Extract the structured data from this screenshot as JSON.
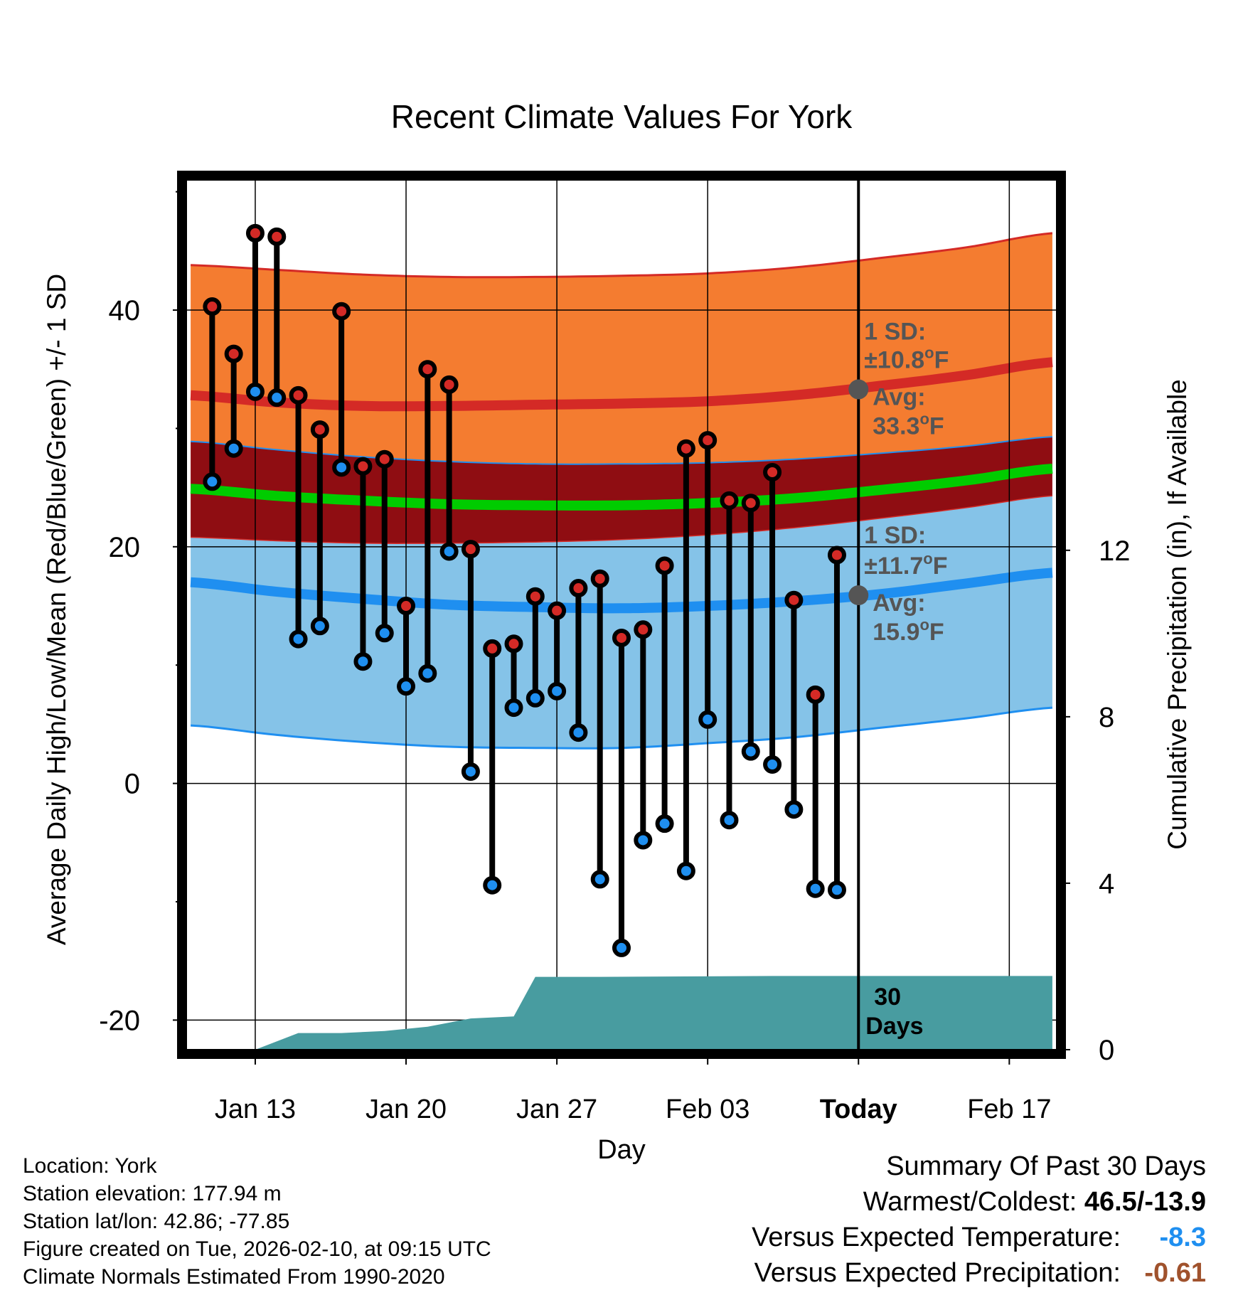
{
  "chart_data": {
    "type": "line",
    "title": "Recent Climate Values For York",
    "xlabel": "Day",
    "ylabel": "Average Daily High/Low/Mean (Red/Blue/Green) +/- 1 SD",
    "y2label": "Cumulative Precipitation (in), If Available",
    "x_ticks": [
      {
        "day": 13,
        "label": "Jan 13"
      },
      {
        "day": 20,
        "label": "Jan 20"
      },
      {
        "day": 27,
        "label": "Jan 27"
      },
      {
        "day": 34,
        "label": "Feb 03"
      },
      {
        "day": 41,
        "label": "Today"
      },
      {
        "day": 48,
        "label": "Feb 17"
      }
    ],
    "xlim": [
      9.8,
      50.2
    ],
    "ylim": [
      -22.5,
      51
    ],
    "y_ticks": [
      -20,
      0,
      20,
      40
    ],
    "y_minor_ticks": [
      -10,
      10,
      30,
      50
    ],
    "y2_range": [
      0,
      20.9
    ],
    "y2_ticks": [
      0,
      4,
      8,
      12
    ],
    "today_day": 41,
    "normals": {
      "day": [
        10,
        14,
        18,
        22,
        26,
        30,
        34,
        38,
        42,
        46,
        50
      ],
      "high_avg": [
        32.8,
        32.2,
        31.9,
        31.9,
        32.0,
        32.1,
        32.3,
        32.8,
        33.6,
        34.5,
        35.6
      ],
      "high_sd_upper": [
        43.8,
        43.4,
        43.0,
        42.8,
        42.8,
        42.9,
        43.1,
        43.6,
        44.4,
        45.3,
        46.5
      ],
      "high_sd_lower": [
        28.9,
        28.2,
        27.6,
        27.2,
        27.0,
        27.0,
        27.1,
        27.4,
        27.9,
        28.5,
        29.3
      ],
      "mean_avg": [
        24.9,
        24.3,
        23.9,
        23.6,
        23.5,
        23.5,
        23.7,
        24.1,
        24.8,
        25.6,
        26.6
      ],
      "low_sd_upper": [
        20.8,
        20.5,
        20.3,
        20.3,
        20.4,
        20.6,
        21.0,
        21.6,
        22.4,
        23.3,
        24.3
      ],
      "low_avg": [
        17.0,
        16.2,
        15.6,
        15.1,
        14.9,
        14.8,
        15.0,
        15.4,
        16.0,
        16.9,
        17.8
      ],
      "low_sd_lower": [
        4.9,
        4.1,
        3.5,
        3.1,
        3.0,
        3.0,
        3.4,
        3.9,
        4.7,
        5.5,
        6.4
      ]
    },
    "daily": {
      "day": [
        11,
        12,
        13,
        14,
        15,
        16,
        17,
        18,
        19,
        20,
        21,
        22,
        23,
        24,
        25,
        26,
        27,
        28,
        29,
        30,
        31,
        32,
        33,
        34,
        35,
        36,
        37,
        38,
        39,
        40
      ],
      "high": [
        40.3,
        36.3,
        46.5,
        46.2,
        32.8,
        29.9,
        39.9,
        26.8,
        27.4,
        15.0,
        35.0,
        33.7,
        19.8,
        11.4,
        11.8,
        15.8,
        14.6,
        16.5,
        17.3,
        12.3,
        13.0,
        18.4,
        28.3,
        29.0,
        23.9,
        23.7,
        26.3,
        15.5,
        7.5,
        19.3
      ],
      "low": [
        25.5,
        28.3,
        33.1,
        32.6,
        12.2,
        13.3,
        26.7,
        10.3,
        12.7,
        8.2,
        9.3,
        19.6,
        1.0,
        -8.6,
        6.4,
        7.2,
        7.8,
        4.3,
        -8.1,
        -13.9,
        -4.8,
        -3.4,
        -7.4,
        5.4,
        -3.1,
        2.7,
        1.6,
        -2.2,
        -8.9,
        -9.0
      ]
    },
    "precip": {
      "day": [
        10,
        11,
        13,
        15,
        17,
        19,
        21,
        23,
        25,
        26,
        29,
        33,
        37,
        41,
        50
      ],
      "cum": [
        0.0,
        0.0,
        0.0,
        0.4,
        0.4,
        0.45,
        0.55,
        0.75,
        0.8,
        1.75,
        1.75,
        1.76,
        1.77,
        1.77,
        1.77
      ]
    },
    "annotations": {
      "high_sd_text_1": "1 SD:",
      "high_sd_text_2": "±10.8",
      "high_avg_text_1": "Avg:",
      "high_avg_text_2": "33.3",
      "high_avg_value": 33.3,
      "low_sd_text_1": "1 SD:",
      "low_sd_text_2": "±11.7",
      "low_avg_text_1": "Avg:",
      "low_avg_text_2": "15.9",
      "low_avg_value": 15.9,
      "unit_degree": "o",
      "unit_f": "F",
      "days_line_1": "30",
      "days_line_2": "Days"
    },
    "colors": {
      "high_band": "#f47c30",
      "high_band_edge": "#d42a26",
      "high_avg_line": "#d42a26",
      "mean_band": "#8f0d12",
      "mean_line": "#00cc00",
      "low_band": "#85c3e8",
      "low_band_edge": "#1f8ff0",
      "low_avg_line": "#1f8ff0",
      "high_dot": "#d42a26",
      "low_dot": "#1f8ff0",
      "precip_fill": "#489ca0",
      "marker_gray": "#555555",
      "annotation_text": "#555555"
    }
  },
  "footer": {
    "location": "Location: York",
    "elevation": "Station elevation: 177.94 m",
    "latlon": "Station lat/lon: 42.86; -77.85",
    "created": "Figure created on Tue, 2026-02-10, at 09:15 UTC",
    "normals": "Climate Normals Estimated From 1990-2020"
  },
  "summary": {
    "title": "Summary Of Past 30 Days",
    "warm_cold_label": "Warmest/Coldest: ",
    "warm_cold_value": "46.5/-13.9",
    "temp_label": "Versus Expected Temperature:",
    "temp_value": "-8.3",
    "precip_label": "Versus Expected Precipitation:",
    "precip_value": "-0.61"
  }
}
